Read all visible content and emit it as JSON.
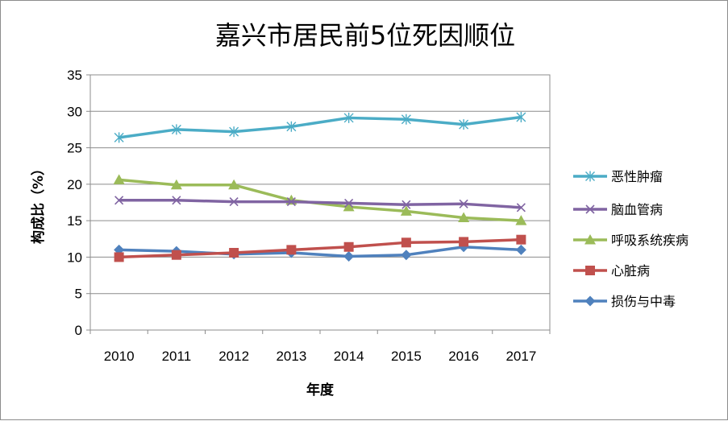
{
  "chart_data": {
    "type": "line",
    "title": "嘉兴市居民前5位死因顺位",
    "xlabel": "年度",
    "ylabel": "构成比（%）",
    "ylim": [
      0,
      35
    ],
    "yticks": [
      "0",
      "5",
      "10",
      "15",
      "20",
      "25",
      "30",
      "35"
    ],
    "grid": "horizontal",
    "legend_position": "right",
    "categories": [
      "2010",
      "2011",
      "2012",
      "2013",
      "2014",
      "2015",
      "2016",
      "2017"
    ],
    "series": [
      {
        "name": "恶性肿瘤",
        "color": "#4bacc6",
        "marker": "asterisk",
        "values": [
          26.4,
          27.5,
          27.2,
          27.9,
          29.1,
          28.9,
          28.2,
          29.2
        ]
      },
      {
        "name": "脑血管病",
        "color": "#8064a2",
        "marker": "x",
        "values": [
          17.8,
          17.8,
          17.6,
          17.6,
          17.4,
          17.2,
          17.3,
          16.8
        ]
      },
      {
        "name": "呼吸系统疾病",
        "color": "#9bbb59",
        "marker": "triangle",
        "values": [
          20.6,
          19.9,
          19.9,
          17.8,
          16.9,
          16.3,
          15.4,
          15.0
        ]
      },
      {
        "name": "心脏病",
        "color": "#c0504d",
        "marker": "square",
        "values": [
          10.0,
          10.3,
          10.6,
          11.0,
          11.4,
          12.0,
          12.1,
          12.4
        ]
      },
      {
        "name": "损伤与中毒",
        "color": "#4f81bd",
        "marker": "diamond",
        "values": [
          11.0,
          10.8,
          10.4,
          10.6,
          10.1,
          10.3,
          11.4,
          11.0
        ]
      }
    ]
  }
}
